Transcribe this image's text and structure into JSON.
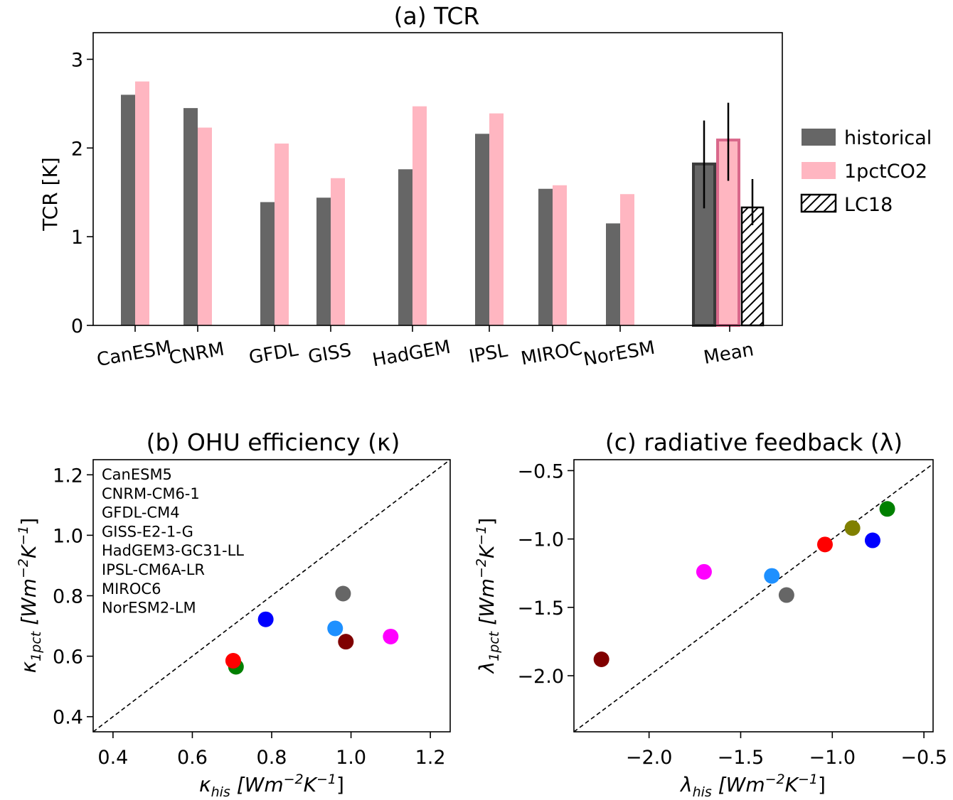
{
  "chart_data": [
    {
      "type": "bar",
      "title": "(a) TCR",
      "ylabel": "TCR [K]",
      "ylim": [
        0,
        3.3
      ],
      "yticks": [
        "0",
        "1",
        "2",
        "3"
      ],
      "categories": [
        "CanESM",
        "CNRM",
        "GFDL",
        "GISS",
        "HadGEM",
        "IPSL",
        "MIROC",
        "NorESM",
        "Mean"
      ],
      "series": [
        {
          "name": "historical",
          "color": "#666666",
          "values": [
            2.6,
            2.45,
            1.39,
            1.44,
            1.76,
            2.16,
            1.54,
            1.15,
            1.82
          ],
          "mean_error": [
            1.32,
            2.31
          ]
        },
        {
          "name": "1pctCO2",
          "color": "#ffb6c1",
          "values": [
            2.75,
            2.23,
            2.05,
            1.66,
            2.47,
            2.39,
            1.58,
            1.48,
            2.09
          ],
          "mean_error": [
            1.63,
            2.51
          ]
        },
        {
          "name": "LC18",
          "pattern": "hatched",
          "values": [
            null,
            null,
            null,
            null,
            null,
            null,
            null,
            null,
            1.33
          ],
          "mean_error": [
            1.13,
            1.65
          ]
        }
      ],
      "legend_placement": "right",
      "grid": false
    },
    {
      "type": "scatter",
      "title": "(b) OHU efficiency (κ)",
      "xlabel": {
        "sym": "κ",
        "sub": "his",
        "unit_pre": "[Wm",
        "exp1": "−2",
        "unit_mid": "K",
        "exp2": "−1",
        "unit_post": "]"
      },
      "ylabel": {
        "sym": "κ",
        "sub": "1pct",
        "unit_pre": "[Wm",
        "exp1": "−2",
        "unit_mid": "K",
        "exp2": "−1",
        "unit_post": "]"
      },
      "xlim": [
        0.35,
        1.25
      ],
      "ylim": [
        0.35,
        1.25
      ],
      "xticks": [
        "0.4",
        "0.6",
        "0.8",
        "1.0",
        "1.2"
      ],
      "yticks": [
        "0.4",
        "0.6",
        "0.8",
        "1.0",
        "1.2"
      ],
      "one_to_one_line": true,
      "legend_placement": "top-left",
      "points": [
        {
          "name": "CanESM5",
          "color": "#008000",
          "x": 0.71,
          "y": 0.565
        },
        {
          "name": "CNRM-CM6-1",
          "color": "#0000ff",
          "x": 0.785,
          "y": 0.722
        },
        {
          "name": "GFDL-CM4",
          "color": "#ff00ff",
          "x": 1.1,
          "y": 0.665
        },
        {
          "name": "GISS-E2-1-G",
          "color": "#1e90ff",
          "x": 0.96,
          "y": 0.692
        },
        {
          "name": "HadGEM3-GC31-LL",
          "color": "#808000",
          "x": null,
          "y": null
        },
        {
          "name": "IPSL-CM6A-LR",
          "color": "#ff0000",
          "x": 0.703,
          "y": 0.585
        },
        {
          "name": "MIROC6",
          "color": "#666666",
          "x": 0.98,
          "y": 0.807
        },
        {
          "name": "NorESM2-LM",
          "color": "#800000",
          "x": 0.987,
          "y": 0.648
        }
      ]
    },
    {
      "type": "scatter",
      "title": "(c) radiative feedback (λ)",
      "xlabel": {
        "sym": "λ",
        "sub": "his",
        "unit_pre": "[Wm",
        "exp1": "−2",
        "unit_mid": "K",
        "exp2": "−1",
        "unit_post": "]"
      },
      "ylabel": {
        "sym": "λ",
        "sub": "1pct",
        "unit_pre": "[Wm",
        "exp1": "−2",
        "unit_mid": "K",
        "exp2": "−1",
        "unit_post": "]"
      },
      "xlim": [
        -2.41,
        -0.45
      ],
      "ylim": [
        -2.41,
        -0.42
      ],
      "xticks": [
        -2.0,
        -1.5,
        -1.0,
        -0.5
      ],
      "yticks": [
        -2.0,
        -1.5,
        -1.0,
        -0.5
      ],
      "xtick_labels": [
        "−2.0",
        "−1.5",
        "−1.0",
        "−0.5"
      ],
      "ytick_labels": [
        "−2.0",
        "−1.5",
        "−1.0",
        "−0.5"
      ],
      "one_to_one_line": true,
      "points": [
        {
          "name": "CanESM5",
          "color": "#008000",
          "x": -0.7,
          "y": -0.78
        },
        {
          "name": "CNRM-CM6-1",
          "color": "#0000ff",
          "x": -0.78,
          "y": -1.01
        },
        {
          "name": "GFDL-CM4",
          "color": "#ff00ff",
          "x": -1.7,
          "y": -1.24
        },
        {
          "name": "GISS-E2-1-G",
          "color": "#1e90ff",
          "x": -1.33,
          "y": -1.27
        },
        {
          "name": "HadGEM3-GC31-LL",
          "color": "#808000",
          "x": -0.89,
          "y": -0.92
        },
        {
          "name": "IPSL-CM6A-LR",
          "color": "#ff0000",
          "x": -1.04,
          "y": -1.04
        },
        {
          "name": "MIROC6",
          "color": "#666666",
          "x": -1.25,
          "y": -1.41
        },
        {
          "name": "NorESM2-LM",
          "color": "#800000",
          "x": -2.26,
          "y": -1.88
        }
      ]
    }
  ]
}
